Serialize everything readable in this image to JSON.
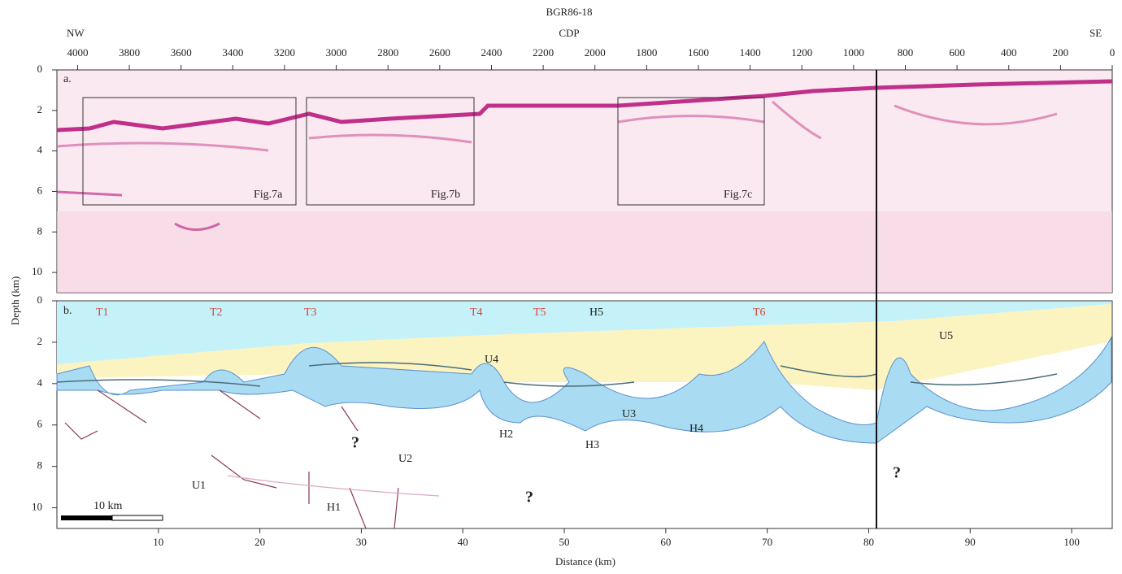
{
  "title": "BGR86-18",
  "top_axis": {
    "label": "CDP",
    "left_label": "NW",
    "right_label": "SE",
    "lim": [
      4080,
      0
    ],
    "ticks": [
      4000,
      3800,
      3600,
      3400,
      3200,
      3000,
      2800,
      2600,
      2400,
      2200,
      2000,
      1800,
      1600,
      1400,
      1200,
      1000,
      800,
      600,
      400,
      200,
      0
    ]
  },
  "bottom_axis": {
    "label": "Distance (km)",
    "lim": [
      0,
      104
    ],
    "ticks": [
      10,
      20,
      30,
      40,
      50,
      60,
      70,
      80,
      90,
      100
    ]
  },
  "depth_axis": {
    "label": "Depth (km)",
    "lim": [
      0,
      11
    ],
    "ticks": [
      0,
      2,
      4,
      6,
      8,
      10
    ]
  },
  "panel_a": {
    "label": "a.",
    "boxes": [
      "Fig.7a",
      "Fig.7b",
      "Fig.7c"
    ]
  },
  "panel_b": {
    "label": "b.",
    "thrusts": [
      "T1",
      "T2",
      "T3",
      "T4",
      "T5",
      "T6"
    ],
    "horizons": [
      "H1",
      "H2",
      "H3",
      "H4",
      "H5"
    ],
    "units": [
      "U1",
      "U2",
      "U3",
      "U4",
      "U5"
    ],
    "unknown": [
      "?",
      "?",
      "?"
    ]
  },
  "scale_bar": "10 km"
}
